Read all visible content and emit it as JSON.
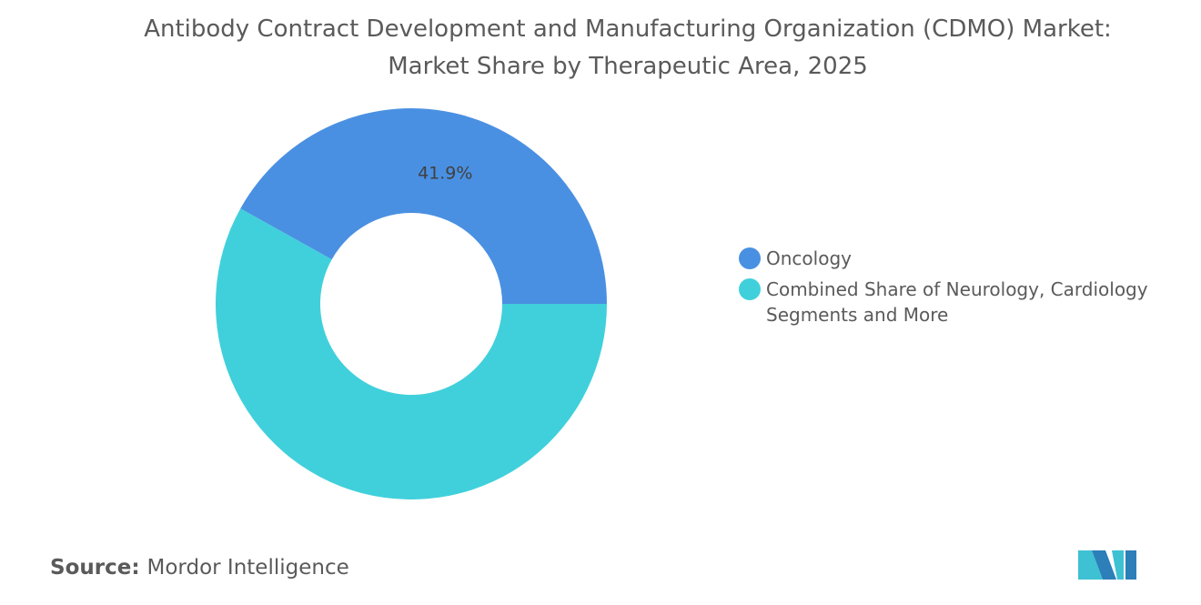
{
  "chart_data": {
    "type": "donut",
    "title": "Antibody Contract Development and Manufacturing Organization (CDMO) Market: Market Share by Therapeutic Area, 2025",
    "categories": [
      "Oncology",
      "Combined Share of Neurology, Cardiology Segments and More"
    ],
    "values": [
      41.9,
      58.1
    ],
    "value_labels": [
      "41.9%",
      null
    ],
    "colors": [
      "#4a90e2",
      "#40d0db"
    ],
    "source_label": "Source:",
    "source": "Mordor Intelligence"
  }
}
